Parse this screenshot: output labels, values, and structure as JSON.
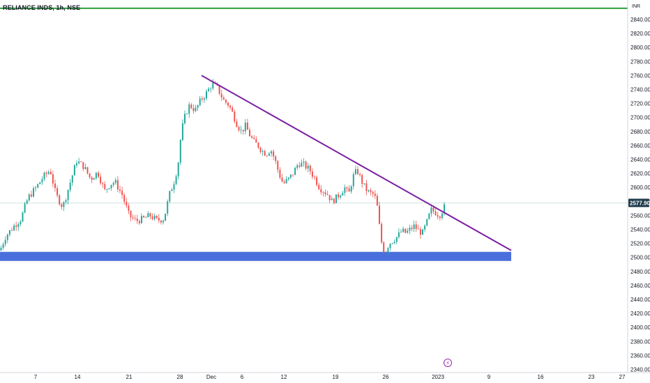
{
  "symbol_header": "RELIANCE INDS, 1h, NSE",
  "currency": "INR",
  "last_price_label": "2577.90",
  "event_icon": "lightning-icon",
  "colors": {
    "up": "#26a69a",
    "down": "#ef5350",
    "trendline": "#7b1fa2",
    "support_zone": "#4a6fdc",
    "top_line": "#2e9e3f",
    "price_line": "#7fb9b0",
    "price_tag": "#1f3b4d"
  },
  "chart_data": {
    "type": "candlestick",
    "title": "",
    "ylim": [
      2340,
      2860
    ],
    "y_ticks": [
      "2340.00",
      "2360.00",
      "2380.00",
      "2400.00",
      "2420.00",
      "2440.00",
      "2460.00",
      "2480.00",
      "2500.00",
      "2520.00",
      "2540.00",
      "2560.00",
      "2580.00",
      "2600.00",
      "2620.00",
      "2640.00",
      "2660.00",
      "2680.00",
      "2700.00",
      "2720.00",
      "2740.00",
      "2760.00",
      "2780.00",
      "2800.00",
      "2820.00",
      "2840.00"
    ],
    "x_ticks": [
      "7",
      "14",
      "21",
      "28",
      "Dec",
      "6",
      "12",
      "19",
      "26",
      "2023",
      "9",
      "16",
      "23",
      "27"
    ],
    "last_price": 2577.9,
    "path": [
      [
        0,
        2510
      ],
      [
        8,
        2530
      ],
      [
        20,
        2545
      ],
      [
        30,
        2555
      ],
      [
        40,
        2585
      ],
      [
        52,
        2600
      ],
      [
        62,
        2615
      ],
      [
        72,
        2625
      ],
      [
        80,
        2590
      ],
      [
        90,
        2572
      ],
      [
        100,
        2605
      ],
      [
        110,
        2638
      ],
      [
        120,
        2630
      ],
      [
        130,
        2612
      ],
      [
        140,
        2622
      ],
      [
        150,
        2595
      ],
      [
        158,
        2605
      ],
      [
        165,
        2608
      ],
      [
        175,
        2590
      ],
      [
        185,
        2560
      ],
      [
        195,
        2552
      ],
      [
        205,
        2555
      ],
      [
        215,
        2560
      ],
      [
        225,
        2553
      ],
      [
        235,
        2555
      ],
      [
        243,
        2590
      ],
      [
        250,
        2610
      ],
      [
        255,
        2630
      ],
      [
        260,
        2680
      ],
      [
        266,
        2705
      ],
      [
        272,
        2718
      ],
      [
        280,
        2710
      ],
      [
        288,
        2725
      ],
      [
        296,
        2735
      ],
      [
        304,
        2748
      ],
      [
        312,
        2742
      ],
      [
        320,
        2725
      ],
      [
        328,
        2718
      ],
      [
        334,
        2705
      ],
      [
        340,
        2690
      ],
      [
        346,
        2680
      ],
      [
        352,
        2688
      ],
      [
        358,
        2675
      ],
      [
        364,
        2665
      ],
      [
        370,
        2660
      ],
      [
        376,
        2652
      ],
      [
        382,
        2648
      ],
      [
        388,
        2655
      ],
      [
        394,
        2640
      ],
      [
        400,
        2620
      ],
      [
        406,
        2605
      ],
      [
        414,
        2612
      ],
      [
        420,
        2620
      ],
      [
        428,
        2635
      ],
      [
        436,
        2632
      ],
      [
        444,
        2625
      ],
      [
        452,
        2612
      ],
      [
        458,
        2600
      ],
      [
        464,
        2595
      ],
      [
        470,
        2590
      ],
      [
        476,
        2580
      ],
      [
        482,
        2585
      ],
      [
        488,
        2592
      ],
      [
        494,
        2600
      ],
      [
        500,
        2590
      ],
      [
        506,
        2615
      ],
      [
        512,
        2625
      ],
      [
        518,
        2610
      ],
      [
        524,
        2598
      ],
      [
        530,
        2592
      ],
      [
        536,
        2590
      ],
      [
        540,
        2580
      ],
      [
        544,
        2545
      ],
      [
        548,
        2515
      ],
      [
        552,
        2508
      ],
      [
        558,
        2520
      ],
      [
        564,
        2525
      ],
      [
        570,
        2530
      ],
      [
        576,
        2538
      ],
      [
        582,
        2535
      ],
      [
        588,
        2540
      ],
      [
        594,
        2545
      ],
      [
        600,
        2538
      ],
      [
        606,
        2535
      ],
      [
        612,
        2550
      ],
      [
        618,
        2568
      ],
      [
        624,
        2565
      ],
      [
        630,
        2560
      ],
      [
        636,
        2570
      ],
      [
        640,
        2577.9
      ]
    ],
    "trendline": {
      "start": [
        289,
        2760
      ],
      "end": [
        733,
        2510
      ]
    },
    "support_zone": [
      2495,
      2508
    ],
    "top_level": 2856
  }
}
